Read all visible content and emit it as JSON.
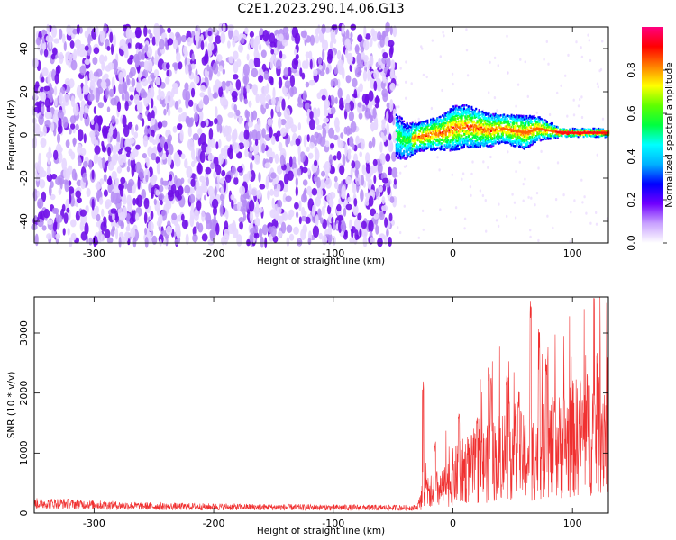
{
  "title": "C2E1.2023.290.14.06.G13",
  "colors": {
    "spectrogram_low": "#e8d8ff",
    "spectrogram_mid": "#7a1ee6",
    "snr_line": "#f03030",
    "colormap": [
      "#ffffff",
      "#c8a0ff",
      "#7000ff",
      "#0000ff",
      "#00b0ff",
      "#00ffff",
      "#00ff40",
      "#60ff00",
      "#ffff00",
      "#ff8000",
      "#ff0000",
      "#ff0080"
    ]
  },
  "chart_data": [
    {
      "type": "heatmap",
      "xlabel": "Height of straight line (km)",
      "ylabel": "Frequency (Hz)",
      "xlim": [
        -350,
        130
      ],
      "ylim": [
        -50,
        50
      ],
      "xticks": [
        -300,
        -200,
        -100,
        0,
        100
      ],
      "yticks": [
        -40,
        -20,
        0,
        20,
        40
      ],
      "colorbar": {
        "label": "Normalized spectral amplitude",
        "range": [
          0,
          1
        ],
        "ticks": [
          0.0,
          0.2,
          0.4,
          0.6,
          0.8
        ]
      },
      "regions": [
        {
          "x": [
            -350,
            -48
          ],
          "freq": [
            -50,
            50
          ],
          "amplitude": [
            0.02,
            0.12
          ]
        },
        {
          "x": [
            -48,
            130
          ],
          "freq": "narrow band near 0-3 Hz",
          "amplitude": [
            0.2,
            1.0
          ]
        }
      ],
      "band_center": [
        [
          -48,
          0
        ],
        [
          -40,
          -3
        ],
        [
          -30,
          -1
        ],
        [
          -20,
          0
        ],
        [
          -10,
          1
        ],
        [
          0,
          3
        ],
        [
          10,
          4
        ],
        [
          20,
          3
        ],
        [
          30,
          2
        ],
        [
          40,
          3
        ],
        [
          50,
          2
        ],
        [
          60,
          1
        ],
        [
          70,
          3
        ],
        [
          80,
          2
        ],
        [
          90,
          1
        ],
        [
          100,
          1
        ],
        [
          110,
          1
        ],
        [
          120,
          1
        ],
        [
          130,
          1
        ]
      ],
      "band_halfwidth": [
        [
          -48,
          8
        ],
        [
          -30,
          5
        ],
        [
          -10,
          6
        ],
        [
          0,
          8
        ],
        [
          20,
          7
        ],
        [
          40,
          5
        ],
        [
          60,
          6
        ],
        [
          80,
          3
        ],
        [
          90,
          1.5
        ],
        [
          130,
          1.5
        ]
      ]
    },
    {
      "type": "line",
      "xlabel": "Height of straight line (km)",
      "ylabel": "SNR (10 * v/v)",
      "xlim": [
        -350,
        130
      ],
      "ylim": [
        0,
        3600
      ],
      "xticks": [
        -300,
        -200,
        -100,
        0,
        100
      ],
      "yticks": [
        0,
        1000,
        2000,
        3000
      ],
      "series": [
        {
          "envelope": [
            [
              -350,
              200
            ],
            [
              -330,
              200
            ],
            [
              -300,
              170
            ],
            [
              -250,
              140
            ],
            [
              -200,
              130
            ],
            [
              -150,
              120
            ],
            [
              -100,
              115
            ],
            [
              -50,
              110
            ],
            [
              -30,
              110
            ],
            [
              -25,
              400
            ],
            [
              -20,
              600
            ],
            [
              -10,
              500
            ],
            [
              0,
              800
            ],
            [
              10,
              950
            ],
            [
              20,
              1000
            ],
            [
              30,
              1100
            ],
            [
              40,
              1300
            ],
            [
              50,
              1400
            ],
            [
              60,
              1200
            ],
            [
              70,
              1300
            ],
            [
              80,
              1400
            ],
            [
              90,
              1500
            ],
            [
              100,
              1650
            ],
            [
              110,
              1750
            ],
            [
              120,
              1850
            ],
            [
              130,
              1950
            ]
          ],
          "peaks": [
            [
              -25,
              2200
            ],
            [
              -15,
              1200
            ],
            [
              5,
              1700
            ],
            [
              20,
              1600
            ],
            [
              30,
              2450
            ],
            [
              32,
              2300
            ],
            [
              45,
              2480
            ],
            [
              55,
              2050
            ],
            [
              65,
              3600
            ],
            [
              72,
              3100
            ],
            [
              78,
              2700
            ],
            [
              85,
              1900
            ]
          ]
        }
      ]
    }
  ]
}
